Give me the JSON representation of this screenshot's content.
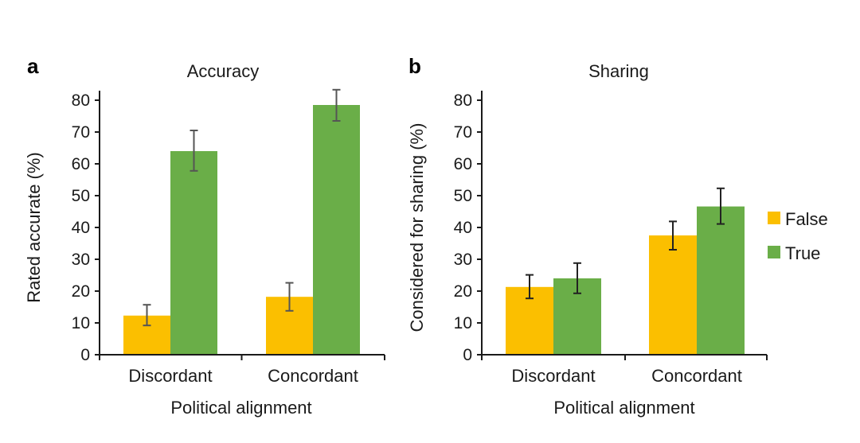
{
  "colors": {
    "false": "#fbbf00",
    "true": "#6aae48",
    "axis": "#1a1a1a",
    "error_a": "#555555",
    "error_b": "#222222"
  },
  "legend": {
    "items": [
      {
        "label": "False",
        "color": "#fbbf00"
      },
      {
        "label": "True",
        "color": "#6aae48"
      }
    ]
  },
  "chart_data": [
    {
      "type": "bar",
      "panel": "a",
      "title": "Accuracy",
      "xlabel": "Political alignment",
      "ylabel": "Rated accurate (%)",
      "categories": [
        "Discordant",
        "Concordant"
      ],
      "yticks": [
        "0",
        "10",
        "20",
        "30",
        "40",
        "50",
        "60",
        "70",
        "80"
      ],
      "ylim": [
        0,
        80
      ],
      "series": [
        {
          "name": "False",
          "values": [
            12.3,
            18.2
          ],
          "err_low": [
            9.2,
            13.8
          ],
          "err_high": [
            15.7,
            22.6
          ]
        },
        {
          "name": "True",
          "values": [
            64.0,
            78.5
          ],
          "err_low": [
            57.8,
            73.5
          ],
          "err_high": [
            70.5,
            83.3
          ]
        }
      ]
    },
    {
      "type": "bar",
      "panel": "b",
      "title": "Sharing",
      "xlabel": "Political alignment",
      "ylabel": "Considered for sharing (%)",
      "categories": [
        "Discordant",
        "Concordant"
      ],
      "yticks": [
        "0",
        "10",
        "20",
        "30",
        "40",
        "50",
        "60",
        "70",
        "80"
      ],
      "ylim": [
        0,
        80
      ],
      "series": [
        {
          "name": "False",
          "values": [
            21.3,
            37.5
          ],
          "err_low": [
            17.7,
            33.0
          ],
          "err_high": [
            25.1,
            41.9
          ]
        },
        {
          "name": "True",
          "values": [
            24.0,
            46.6
          ],
          "err_low": [
            19.3,
            41.1
          ],
          "err_high": [
            28.8,
            52.3
          ]
        }
      ]
    }
  ]
}
